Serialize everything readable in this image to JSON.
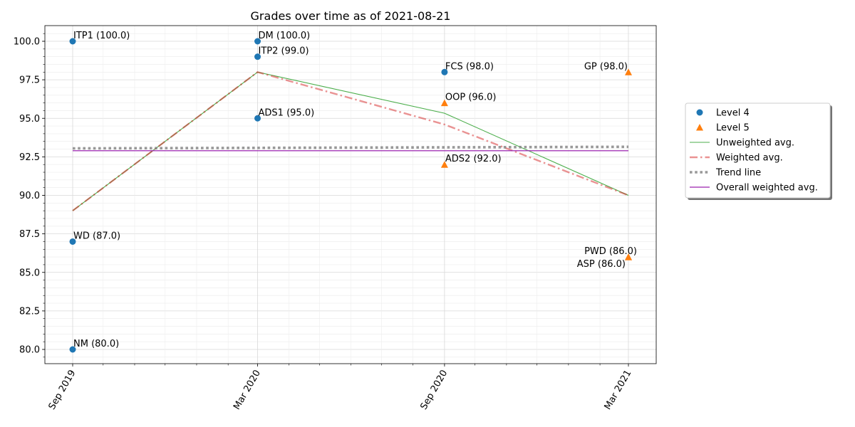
{
  "chart_data": {
    "type": "scatter",
    "title": "Grades over time as of 2021-08-21",
    "xlabel": "",
    "ylabel": "",
    "x_ticks": [
      "Sep 2019",
      "Mar 2020",
      "Sep 2020",
      "Mar 2021"
    ],
    "x_tick_dates": [
      "2019-09-01",
      "2020-03-01",
      "2020-09-01",
      "2021-03-01"
    ],
    "xlim": [
      "2019-08-01",
      "2021-04-01"
    ],
    "y_ticks": [
      "80.0",
      "82.5",
      "85.0",
      "87.5",
      "90.0",
      "92.5",
      "95.0",
      "97.5",
      "100.0"
    ],
    "ylim": [
      79,
      101
    ],
    "grid": true,
    "legend_position": "outside right",
    "colors": {
      "level4": "#1f77b4",
      "level5": "#ff7f0e",
      "unweighted": "#2ca02c",
      "weighted": "#d62728",
      "trend": "#7f7f7f",
      "overall": "#9c27b0"
    },
    "series": [
      {
        "name": "Level 4",
        "marker": "circle",
        "points": [
          {
            "x": "2019-09-01",
            "y": 100.0,
            "label": "ITP1 (100.0)"
          },
          {
            "x": "2019-09-01",
            "y": 87.0,
            "label": "WD (87.0)"
          },
          {
            "x": "2019-09-01",
            "y": 80.0,
            "label": "NM (80.0)"
          },
          {
            "x": "2020-03-01",
            "y": 100.0,
            "label": "DM (100.0)"
          },
          {
            "x": "2020-03-01",
            "y": 99.0,
            "label": "ITP2 (99.0)"
          },
          {
            "x": "2020-03-01",
            "y": 95.0,
            "label": "ADS1 (95.0)"
          },
          {
            "x": "2020-09-01",
            "y": 98.0,
            "label": "FCS (98.0)"
          }
        ]
      },
      {
        "name": "Level 5",
        "marker": "triangle",
        "points": [
          {
            "x": "2020-09-01",
            "y": 96.0,
            "label": "OOP (96.0)"
          },
          {
            "x": "2020-09-01",
            "y": 92.0,
            "label": "ADS2 (92.0)"
          },
          {
            "x": "2021-03-01",
            "y": 98.0,
            "label": "GP (98.0)"
          },
          {
            "x": "2021-03-01",
            "y": 86.0,
            "label": "PWD (86.0)"
          },
          {
            "x": "2021-03-01",
            "y": 86.0,
            "label": "ASP (86.0)"
          }
        ]
      },
      {
        "name": "Unweighted avg.",
        "type": "line",
        "points": [
          {
            "x": "2019-09-01",
            "y": 89.0
          },
          {
            "x": "2020-03-01",
            "y": 98.0
          },
          {
            "x": "2020-09-01",
            "y": 95.33
          },
          {
            "x": "2021-03-01",
            "y": 90.0
          }
        ]
      },
      {
        "name": "Weighted avg.",
        "type": "line",
        "points": [
          {
            "x": "2019-09-01",
            "y": 89.0
          },
          {
            "x": "2020-03-01",
            "y": 98.0
          },
          {
            "x": "2020-09-01",
            "y": 94.6
          },
          {
            "x": "2021-03-01",
            "y": 90.0
          }
        ]
      },
      {
        "name": "Trend line",
        "type": "line",
        "points": [
          {
            "x": "2019-09-01",
            "y": 93.05
          },
          {
            "x": "2021-03-01",
            "y": 93.15
          }
        ]
      },
      {
        "name": "Overall weighted avg.",
        "type": "line",
        "points": [
          {
            "x": "2019-09-01",
            "y": 92.9
          },
          {
            "x": "2021-03-01",
            "y": 92.9
          }
        ]
      }
    ]
  }
}
